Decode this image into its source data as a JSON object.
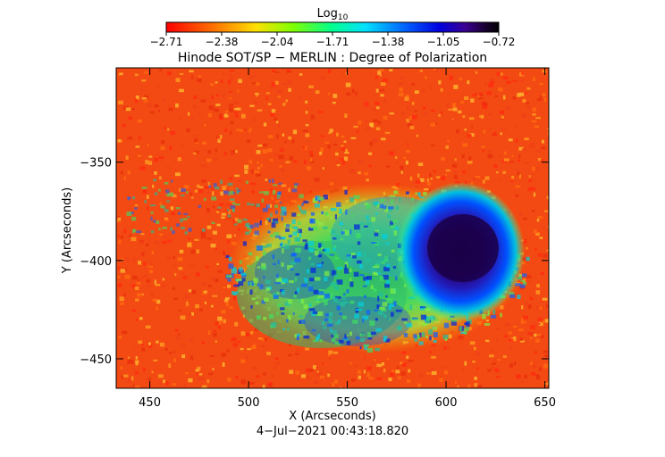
{
  "colorbar": {
    "label_main": "Log",
    "label_sub": "10",
    "ticks": [
      "−2.71",
      "−2.38",
      "−2.04",
      "−1.71",
      "−1.38",
      "−1.05",
      "−0.72"
    ],
    "range": [
      -2.71,
      -0.72
    ],
    "colors": [
      "#ff0000",
      "#ff8000",
      "#ffff00",
      "#80ff00",
      "#00ff80",
      "#00ffff",
      "#0080ff",
      "#0000ff",
      "#4000c0",
      "#200040",
      "#000000"
    ]
  },
  "title": "Hinode SOT/SP − MERLIN : Degree of Polarization",
  "axes": {
    "x": {
      "label": "X (Arcseconds)",
      "range": [
        433,
        652
      ],
      "ticks": [
        450,
        500,
        550,
        600,
        650
      ]
    },
    "y": {
      "label": "Y (Arcseconds)",
      "range": [
        -465,
        -302
      ],
      "ticks": [
        -350,
        -400,
        -450
      ],
      "tick_labels": [
        "−350",
        "−400",
        "−450"
      ]
    }
  },
  "timestamp": "4−Jul−2021 00:43:18.820",
  "scene": {
    "background_level": "red-orange quiet Sun",
    "sunspot_umbra_center_arcsec": [
      610,
      -392
    ],
    "sunspot_umbra_level": "-0.9",
    "plage_regions": "green/blue patches to the lower-left of the spot"
  }
}
